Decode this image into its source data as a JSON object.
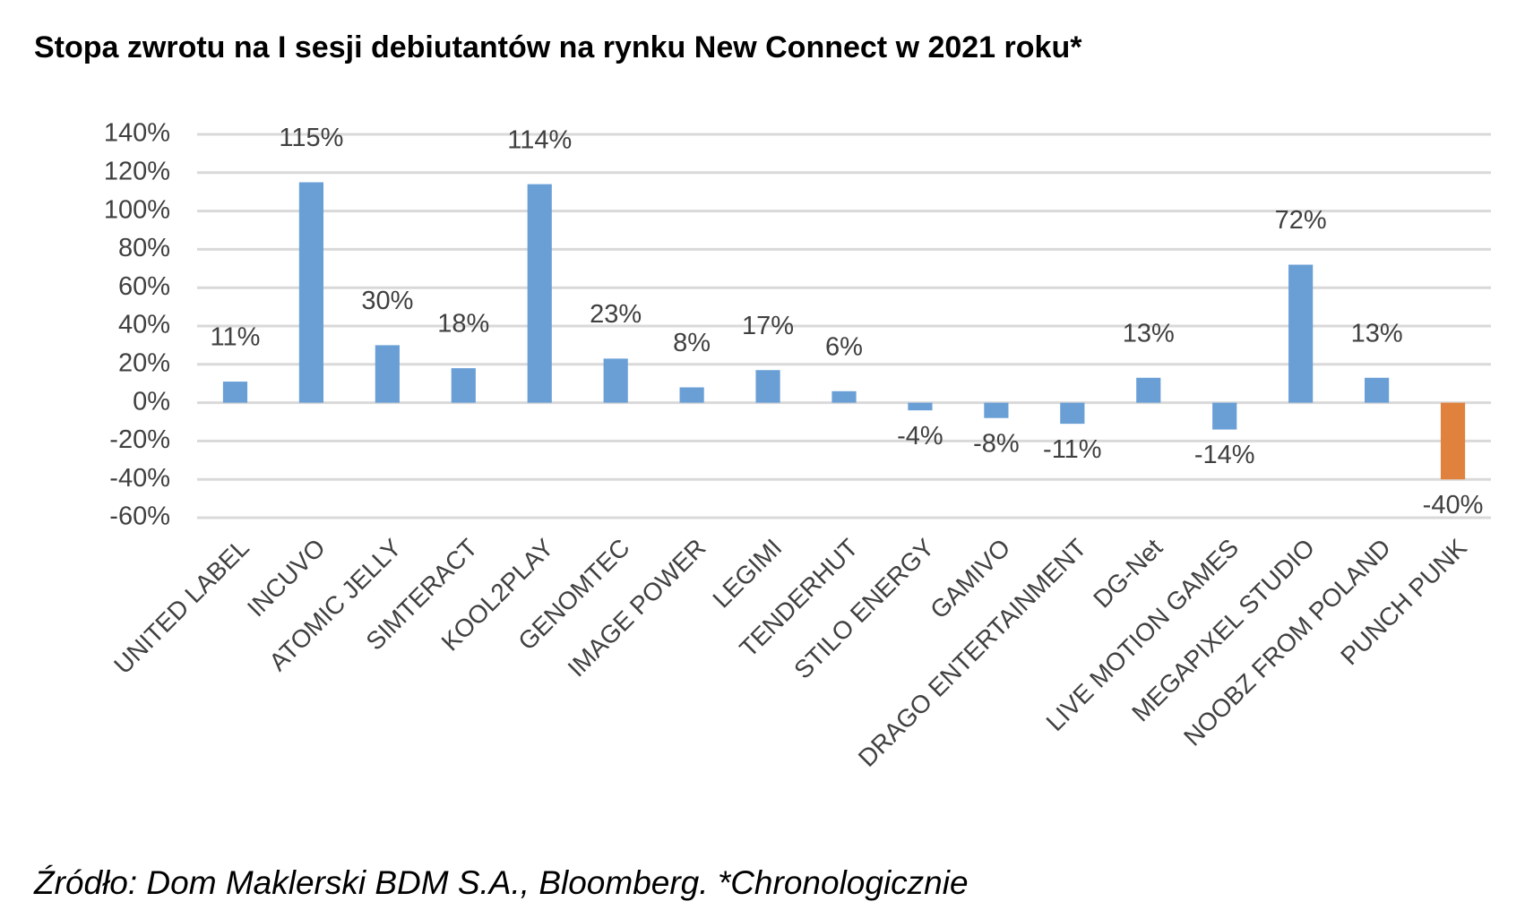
{
  "chart_data": {
    "type": "bar",
    "title": "Stopa zwrotu na I sesji debiutantów na rynku New Connect w 2021 roku*",
    "source": "Źródło: Dom Maklerski BDM S.A., Bloomberg. *Chronologicznie",
    "categories": [
      "UNITED LABEL",
      "INCUVO",
      "ATOMIC JELLY",
      "SIMTERACT",
      "KOOL2PLAY",
      "GENOMTEC",
      "IMAGE POWER",
      "LEGIMI",
      "TENDERHUT",
      "STILO ENERGY",
      "GAMIVO",
      "DRAGO ENTERTAINMENT",
      "DG-Net",
      "LIVE MOTION GAMES",
      "MEGAPIXEL STUDIO",
      "NOOBZ FROM POLAND",
      "PUNCH PUNK"
    ],
    "values": [
      11,
      115,
      30,
      18,
      114,
      23,
      8,
      17,
      6,
      -4,
      -8,
      -11,
      13,
      -14,
      72,
      13,
      -40
    ],
    "value_labels": [
      "11%",
      "115%",
      "30%",
      "18%",
      "114%",
      "23%",
      "8%",
      "17%",
      "6%",
      "-4%",
      "-8%",
      "-11%",
      "13%",
      "-14%",
      "72%",
      "13%",
      "-40%"
    ],
    "colors": [
      "#6a9fd6",
      "#6a9fd6",
      "#6a9fd6",
      "#6a9fd6",
      "#6a9fd6",
      "#6a9fd6",
      "#6a9fd6",
      "#6a9fd6",
      "#6a9fd6",
      "#6a9fd6",
      "#6a9fd6",
      "#6a9fd6",
      "#6a9fd6",
      "#6a9fd6",
      "#6a9fd6",
      "#6a9fd6",
      "#e0823d"
    ],
    "ylim": [
      -60,
      140
    ],
    "yticks": [
      {
        "value": -60,
        "label": "-60%"
      },
      {
        "value": -40,
        "label": "-40%"
      },
      {
        "value": -20,
        "label": "-20%"
      },
      {
        "value": 0,
        "label": "0%"
      },
      {
        "value": 20,
        "label": "20%"
      },
      {
        "value": 40,
        "label": "40%"
      },
      {
        "value": 60,
        "label": "60%"
      },
      {
        "value": 80,
        "label": "80%"
      },
      {
        "value": 100,
        "label": "100%"
      },
      {
        "value": 120,
        "label": "120%"
      },
      {
        "value": 140,
        "label": "140%"
      }
    ],
    "grid": true
  }
}
